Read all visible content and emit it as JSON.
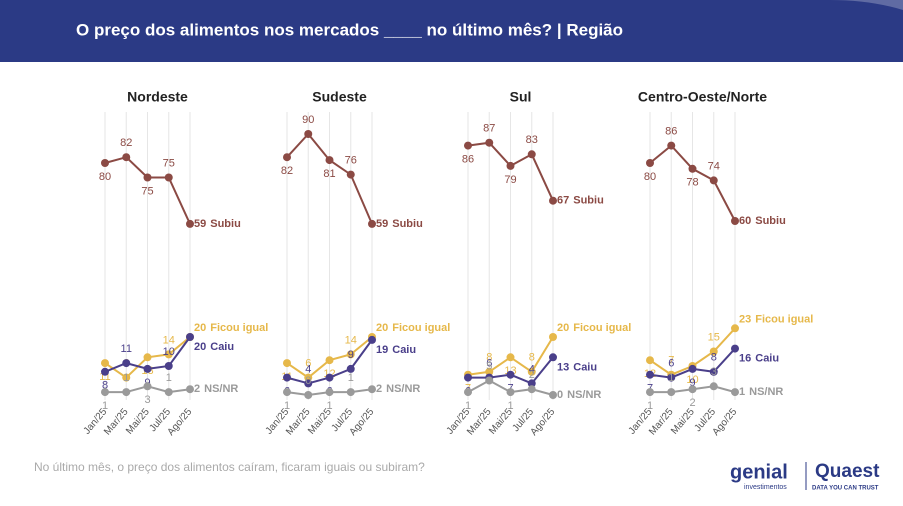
{
  "header": {
    "title": "O preço dos alimentos nos mercados ____ no último mês? | Região"
  },
  "footer": {
    "note": "No último mês, o preço dos alimentos caíram, ficaram iguais ou subiram?",
    "logo_left": "genial",
    "logo_left_sub": "investimentos",
    "logo_right": "Quaest",
    "logo_right_sub": "DATA YOU CAN TRUST"
  },
  "chart_data": [
    {
      "type": "line",
      "title": "Nordeste",
      "categories": [
        "Jan/25",
        "Mar/25",
        "Mai/25",
        "Jul/25",
        "Ago/25"
      ],
      "ylim": [
        0,
        100
      ],
      "grid": true,
      "series": [
        {
          "name": "Subiu",
          "color": "#8b4a44",
          "values": [
            80,
            82,
            75,
            75,
            59
          ]
        },
        {
          "name": "Ficou igual",
          "color": "#e6b84a",
          "values": [
            11,
            6,
            13,
            14,
            20
          ]
        },
        {
          "name": "Caiu",
          "color": "#4a3f8a",
          "values": [
            8,
            11,
            9,
            10,
            20
          ]
        },
        {
          "name": "NS/NR",
          "color": "#9a9a9a",
          "values": [
            1,
            1,
            3,
            1,
            2
          ]
        }
      ]
    },
    {
      "type": "line",
      "title": "Sudeste",
      "categories": [
        "Jan/25",
        "Mar/25",
        "Mai/25",
        "Jul/25",
        "Ago/25"
      ],
      "ylim": [
        0,
        100
      ],
      "grid": true,
      "series": [
        {
          "name": "Subiu",
          "color": "#8b4a44",
          "values": [
            82,
            90,
            81,
            76,
            59
          ]
        },
        {
          "name": "Ficou igual",
          "color": "#e6b84a",
          "values": [
            11,
            6,
            12,
            14,
            20
          ]
        },
        {
          "name": "Caiu",
          "color": "#4a3f8a",
          "values": [
            6,
            4,
            6,
            9,
            19
          ]
        },
        {
          "name": "NS/NR",
          "color": "#9a9a9a",
          "values": [
            1,
            0,
            1,
            1,
            2
          ]
        }
      ]
    },
    {
      "type": "line",
      "title": "Sul",
      "categories": [
        "Jan/25",
        "Mar/25",
        "Mai/25",
        "Jul/25",
        "Ago/25"
      ],
      "ylim": [
        0,
        100
      ],
      "grid": true,
      "series": [
        {
          "name": "Subiu",
          "color": "#8b4a44",
          "values": [
            86,
            87,
            79,
            83,
            67
          ]
        },
        {
          "name": "Ficou igual",
          "color": "#e6b84a",
          "values": [
            7,
            8,
            13,
            8,
            20
          ]
        },
        {
          "name": "Caiu",
          "color": "#4a3f8a",
          "values": [
            6,
            6,
            7,
            4,
            13
          ]
        },
        {
          "name": "NS/NR",
          "color": "#9a9a9a",
          "values": [
            1,
            5,
            1,
            2,
            0
          ]
        }
      ]
    },
    {
      "type": "line",
      "title": "Centro-Oeste/Norte",
      "categories": [
        "Jan/25",
        "Mar/25",
        "Mai/25",
        "Jul/25",
        "Ago/25"
      ],
      "ylim": [
        0,
        100
      ],
      "grid": true,
      "series": [
        {
          "name": "Subiu",
          "color": "#8b4a44",
          "values": [
            80,
            86,
            78,
            74,
            60
          ]
        },
        {
          "name": "Ficou igual",
          "color": "#e6b84a",
          "values": [
            12,
            7,
            10,
            15,
            23
          ]
        },
        {
          "name": "Caiu",
          "color": "#4a3f8a",
          "values": [
            7,
            6,
            9,
            8,
            16
          ]
        },
        {
          "name": "NS/NR",
          "color": "#9a9a9a",
          "values": [
            1,
            1,
            2,
            3,
            1
          ]
        }
      ]
    }
  ]
}
